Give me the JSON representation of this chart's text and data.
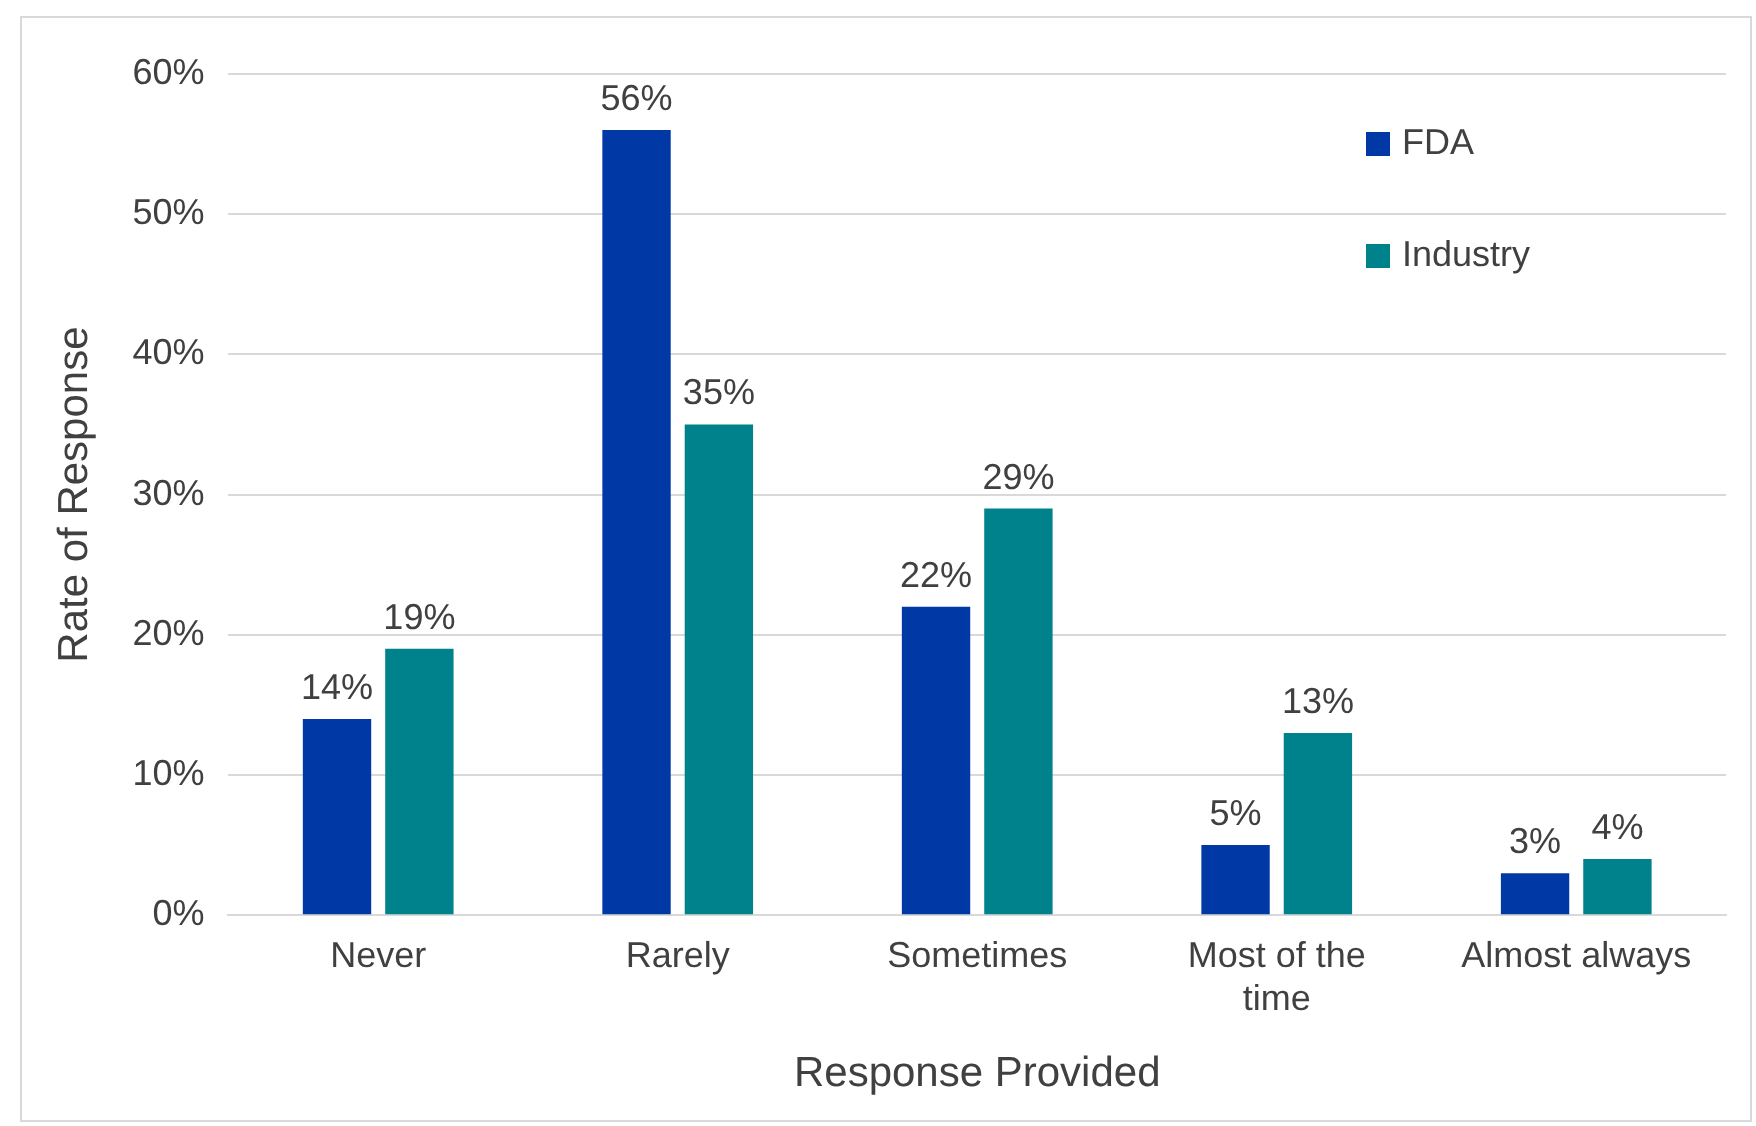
{
  "chart_data": {
    "type": "bar",
    "xlabel": "Response Provided",
    "ylabel": "Rate of Response",
    "categories": [
      "Never",
      "Rarely",
      "Sometimes",
      "Most of the time",
      "Almost always"
    ],
    "series": [
      {
        "name": "FDA",
        "color": "#0039a6",
        "values": [
          14,
          56,
          22,
          5,
          3
        ],
        "value_labels": [
          "14%",
          "56%",
          "22%",
          "5%",
          "3%"
        ]
      },
      {
        "name": "Industry",
        "color": "#00828c",
        "values": [
          19,
          35,
          29,
          13,
          4
        ],
        "value_labels": [
          "19%",
          "35%",
          "29%",
          "13%",
          "4%"
        ]
      }
    ],
    "ylim": [
      0,
      60
    ],
    "yticks": [
      {
        "value": 0,
        "label": "0%"
      },
      {
        "value": 10,
        "label": "10%"
      },
      {
        "value": 20,
        "label": "20%"
      },
      {
        "value": 30,
        "label": "30%"
      },
      {
        "value": 40,
        "label": "40%"
      },
      {
        "value": 50,
        "label": "50%"
      },
      {
        "value": 60,
        "label": "60%"
      }
    ],
    "grid": "y",
    "legend": "top right"
  }
}
